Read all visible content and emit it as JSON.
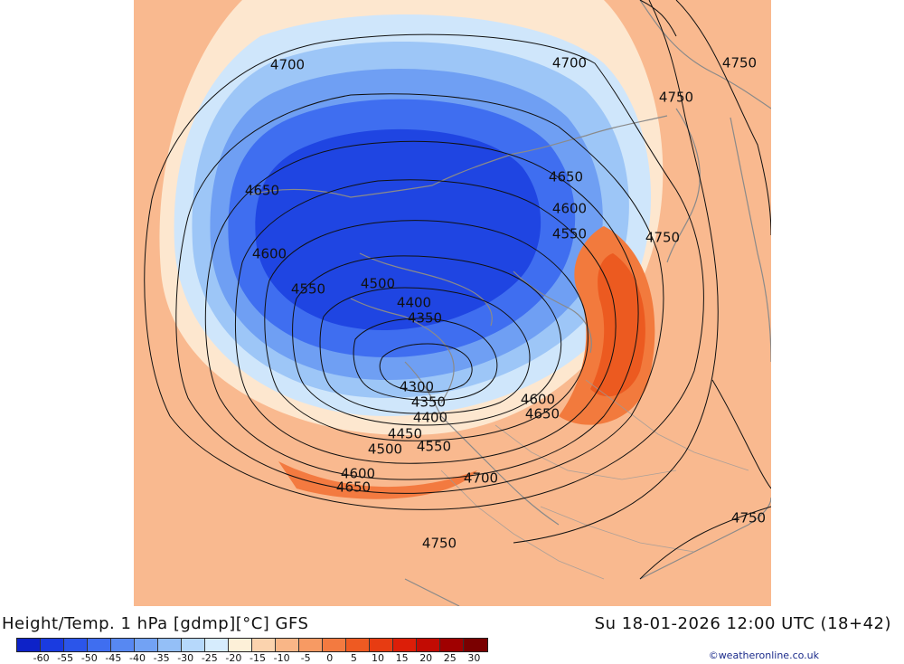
{
  "title": "Height/Temp. 1 hPa [gdmp][°C] GFS",
  "datetime": "Su 18-01-2026 12:00 UTC (18+42)",
  "credit": "©weatheronline.co.uk",
  "colorbar": {
    "ticks": [
      "-60",
      "-55",
      "-50",
      "-45",
      "-40",
      "-35",
      "-30",
      "-25",
      "-20",
      "-15",
      "-10",
      "-5",
      "0",
      "5",
      "10",
      "15",
      "20",
      "25",
      "30"
    ],
    "colors": [
      "#0d22c8",
      "#1a3be0",
      "#2b55ea",
      "#3f6ef0",
      "#5788f2",
      "#72a2f4",
      "#94bff7",
      "#b6d8fb",
      "#d6ecfd",
      "#fdf0d8",
      "#fbd3ae",
      "#f9b687",
      "#f79a63",
      "#f37a40",
      "#ee5a22",
      "#e73c12",
      "#dc1e08",
      "#c20b03",
      "#a00000",
      "#7a0000"
    ]
  },
  "contour_labels": [
    {
      "text": "4700"
    },
    {
      "text": "4700"
    },
    {
      "text": "4750"
    },
    {
      "text": "4750"
    },
    {
      "text": "4650"
    },
    {
      "text": "4650"
    },
    {
      "text": "4600"
    },
    {
      "text": "4550"
    },
    {
      "text": "4750"
    },
    {
      "text": "4600"
    },
    {
      "text": "4550"
    },
    {
      "text": "4500"
    },
    {
      "text": "4400"
    },
    {
      "text": "4350"
    },
    {
      "text": "4300"
    },
    {
      "text": "4350"
    },
    {
      "text": "4400"
    },
    {
      "text": "4450"
    },
    {
      "text": "4500"
    },
    {
      "text": "4550"
    },
    {
      "text": "4600"
    },
    {
      "text": "4650"
    },
    {
      "text": "4600"
    },
    {
      "text": "4650"
    },
    {
      "text": "4700"
    },
    {
      "text": "4750"
    },
    {
      "text": "4750"
    }
  ],
  "icons": {
    "map": "polar-stereographic-map"
  }
}
